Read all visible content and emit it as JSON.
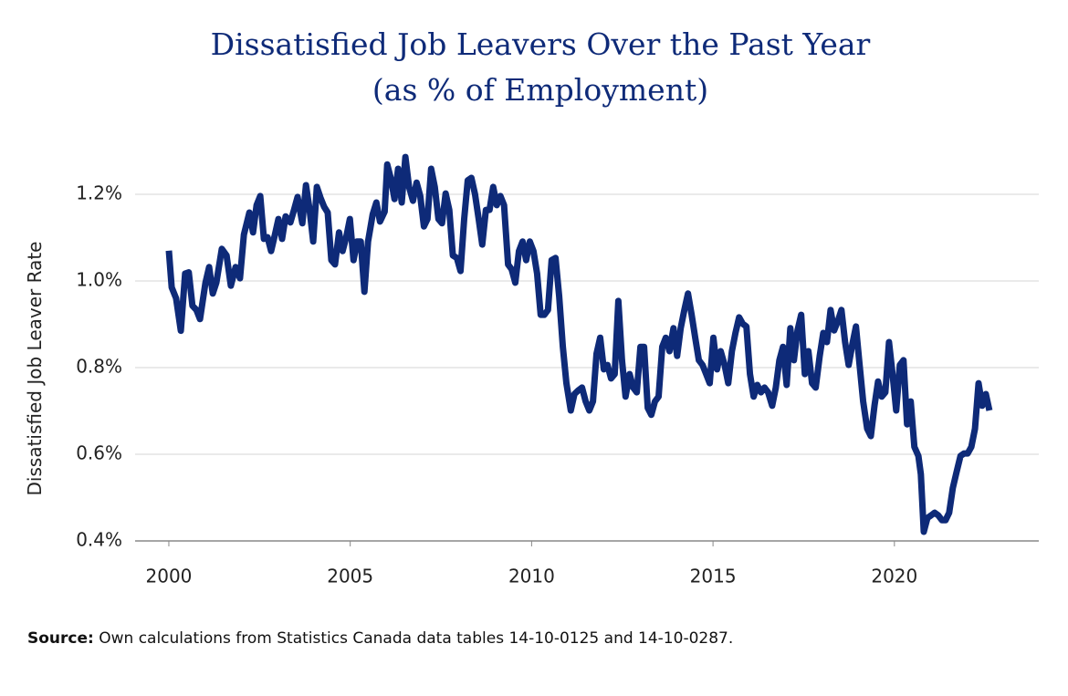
{
  "chart_data": {
    "type": "line",
    "title": "Dissatisfied Job Leavers Over the Past Year",
    "subtitle": "(as % of Employment)",
    "y_label": "Dissatisfied Job Leaver Rate",
    "source_label": "Source:",
    "source": "Own calculations from Statistics Canada data tables 14-10-0125 and 14-10-0287.",
    "color": "#0e2a78",
    "grid": true,
    "xlim": [
      1999.07,
      2023.98
    ],
    "xticks": [
      2000,
      2005,
      2010,
      2015,
      2020
    ],
    "ylim": [
      0.4,
      1.3
    ],
    "yticks": [
      {
        "value": 0.4,
        "label": "0.4%"
      },
      {
        "value": 0.6,
        "label": "0.6%"
      },
      {
        "value": 0.8,
        "label": "0.8%"
      },
      {
        "value": 1.0,
        "label": "1.0%"
      },
      {
        "value": 1.2,
        "label": "1.2%"
      }
    ],
    "x": [
      2000.0,
      2000.08,
      2000.2,
      2000.33,
      2000.45,
      2000.55,
      2000.65,
      2000.76,
      2000.86,
      2001.01,
      2001.11,
      2001.21,
      2001.31,
      2001.46,
      2001.59,
      2001.71,
      2001.84,
      2001.96,
      2002.07,
      2002.22,
      2002.32,
      2002.42,
      2002.52,
      2002.62,
      2002.72,
      2002.82,
      2002.92,
      2003.02,
      2003.12,
      2003.22,
      2003.35,
      2003.45,
      2003.55,
      2003.68,
      2003.78,
      2003.88,
      2003.98,
      2004.08,
      2004.18,
      2004.28,
      2004.38,
      2004.48,
      2004.58,
      2004.69,
      2004.79,
      2004.89,
      2004.99,
      2005.09,
      2005.19,
      2005.29,
      2005.39,
      2005.49,
      2005.62,
      2005.72,
      2005.82,
      2005.95,
      2006.02,
      2006.12,
      2006.22,
      2006.32,
      2006.42,
      2006.52,
      2006.62,
      2006.73,
      2006.83,
      2006.93,
      2007.03,
      2007.13,
      2007.23,
      2007.33,
      2007.43,
      2007.53,
      2007.63,
      2007.73,
      2007.83,
      2007.94,
      2008.04,
      2008.14,
      2008.24,
      2008.34,
      2008.44,
      2008.54,
      2008.64,
      2008.74,
      2008.84,
      2008.94,
      2009.04,
      2009.14,
      2009.24,
      2009.35,
      2009.45,
      2009.55,
      2009.65,
      2009.75,
      2009.85,
      2009.95,
      2010.05,
      2010.15,
      2010.25,
      2010.35,
      2010.45,
      2010.55,
      2010.66,
      2010.76,
      2010.86,
      2010.96,
      2011.08,
      2011.18,
      2011.28,
      2011.39,
      2011.49,
      2011.59,
      2011.69,
      2011.79,
      2011.89,
      2011.99,
      2012.09,
      2012.19,
      2012.29,
      2012.39,
      2012.49,
      2012.59,
      2012.7,
      2012.8,
      2012.9,
      2013.0,
      2013.1,
      2013.2,
      2013.3,
      2013.4,
      2013.5,
      2013.6,
      2013.7,
      2013.8,
      2013.91,
      2014.01,
      2014.11,
      2014.21,
      2014.31,
      2014.41,
      2014.51,
      2014.61,
      2014.71,
      2014.81,
      2014.91,
      2015.01,
      2015.11,
      2015.21,
      2015.32,
      2015.42,
      2015.52,
      2015.62,
      2015.72,
      2015.82,
      2015.92,
      2016.02,
      2016.12,
      2016.22,
      2016.32,
      2016.42,
      2016.52,
      2016.63,
      2016.73,
      2016.83,
      2016.93,
      2017.03,
      2017.13,
      2017.23,
      2017.33,
      2017.43,
      2017.53,
      2017.63,
      2017.73,
      2017.83,
      2017.94,
      2018.04,
      2018.14,
      2018.24,
      2018.34,
      2018.44,
      2018.54,
      2018.64,
      2018.74,
      2018.84,
      2018.94,
      2019.04,
      2019.14,
      2019.25,
      2019.35,
      2019.45,
      2019.55,
      2019.65,
      2019.75,
      2019.85,
      2019.95,
      2020.05,
      2020.15,
      2020.25,
      2020.35,
      2020.45,
      2020.55,
      2020.66,
      2020.73,
      2020.81,
      2020.91,
      2021.01,
      2021.11,
      2021.21,
      2021.31,
      2021.41,
      2021.51,
      2021.61,
      2021.71,
      2021.82,
      2021.92,
      2022.02,
      2022.12,
      2022.22,
      2022.32,
      2022.42,
      2022.52,
      2022.62
    ],
    "values": [
      1.07,
      0.985,
      0.96,
      0.885,
      1.017,
      1.02,
      0.943,
      0.933,
      0.912,
      0.996,
      1.032,
      0.971,
      0.996,
      1.074,
      1.059,
      0.989,
      1.032,
      1.006,
      1.107,
      1.158,
      1.112,
      1.175,
      1.196,
      1.097,
      1.101,
      1.069,
      1.105,
      1.143,
      1.097,
      1.149,
      1.135,
      1.164,
      1.194,
      1.133,
      1.221,
      1.164,
      1.091,
      1.217,
      1.192,
      1.171,
      1.158,
      1.048,
      1.038,
      1.112,
      1.069,
      1.101,
      1.143,
      1.048,
      1.091,
      1.091,
      0.975,
      1.091,
      1.154,
      1.181,
      1.137,
      1.16,
      1.269,
      1.236,
      1.189,
      1.259,
      1.181,
      1.286,
      1.217,
      1.185,
      1.227,
      1.196,
      1.126,
      1.143,
      1.259,
      1.217,
      1.143,
      1.133,
      1.202,
      1.164,
      1.059,
      1.053,
      1.023,
      1.143,
      1.232,
      1.238,
      1.2,
      1.143,
      1.084,
      1.164,
      1.164,
      1.217,
      1.175,
      1.196,
      1.175,
      1.038,
      1.027,
      0.996,
      1.069,
      1.091,
      1.048,
      1.091,
      1.069,
      1.017,
      0.922,
      0.922,
      0.933,
      1.048,
      1.053,
      0.964,
      0.848,
      0.764,
      0.701,
      0.739,
      0.747,
      0.754,
      0.722,
      0.701,
      0.722,
      0.832,
      0.869,
      0.796,
      0.806,
      0.775,
      0.785,
      0.954,
      0.817,
      0.733,
      0.785,
      0.754,
      0.743,
      0.848,
      0.848,
      0.707,
      0.691,
      0.722,
      0.733,
      0.848,
      0.869,
      0.838,
      0.891,
      0.827,
      0.891,
      0.933,
      0.971,
      0.922,
      0.869,
      0.817,
      0.806,
      0.785,
      0.764,
      0.869,
      0.796,
      0.838,
      0.806,
      0.764,
      0.838,
      0.88,
      0.916,
      0.901,
      0.895,
      0.785,
      0.733,
      0.76,
      0.743,
      0.754,
      0.743,
      0.712,
      0.754,
      0.817,
      0.848,
      0.76,
      0.891,
      0.817,
      0.886,
      0.922,
      0.785,
      0.838,
      0.764,
      0.754,
      0.827,
      0.88,
      0.859,
      0.933,
      0.886,
      0.907,
      0.933,
      0.859,
      0.806,
      0.853,
      0.895,
      0.806,
      0.722,
      0.659,
      0.642,
      0.712,
      0.768,
      0.733,
      0.743,
      0.859,
      0.785,
      0.701,
      0.806,
      0.817,
      0.669,
      0.722,
      0.617,
      0.596,
      0.554,
      0.421,
      0.453,
      0.459,
      0.465,
      0.459,
      0.448,
      0.448,
      0.465,
      0.522,
      0.558,
      0.596,
      0.602,
      0.602,
      0.617,
      0.659,
      0.764,
      0.712,
      0.739,
      0.701
    ]
  }
}
